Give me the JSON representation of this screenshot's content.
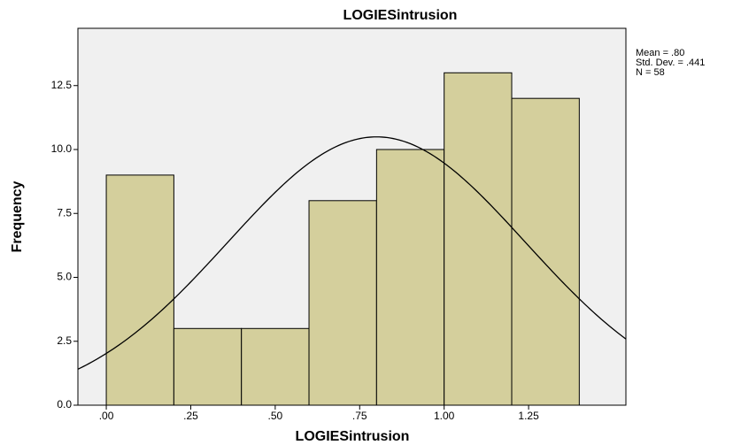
{
  "chart_data": {
    "type": "histogram",
    "title": "LOGIESintrusion",
    "x_label": "LOGIESintrusion",
    "y_label": "Frequency",
    "bins": [
      0,
      0.2,
      0.4,
      0.6,
      0.8,
      1.0,
      1.2,
      1.4
    ],
    "values": [
      9,
      3,
      3,
      8,
      10,
      13,
      12
    ],
    "color": "#d4cf9c",
    "xlim": [
      -0.084,
      1.538
    ],
    "ylim": [
      0,
      14.74
    ],
    "xticks": [
      {
        "value": 0,
        "label": ".00"
      },
      {
        "value": 0.25,
        "label": ".25"
      },
      {
        "value": 0.5,
        "label": ".50"
      },
      {
        "value": 0.75,
        "label": ".75"
      },
      {
        "value": 1.0,
        "label": "1.00"
      },
      {
        "value": 1.25,
        "label": "1.25"
      }
    ],
    "yticks": [
      {
        "value": 0,
        "label": "0.0"
      },
      2.5,
      {
        "value": 5,
        "label": "5.0"
      },
      7.5,
      {
        "value": 10,
        "label": "10.0"
      },
      12.5
    ],
    "annotations": [
      "Mean = .80",
      "Std. Dev. = .441",
      "N = 58"
    ],
    "normal_curve": {
      "mean": 0.8,
      "std": 0.441,
      "n": 58
    }
  }
}
